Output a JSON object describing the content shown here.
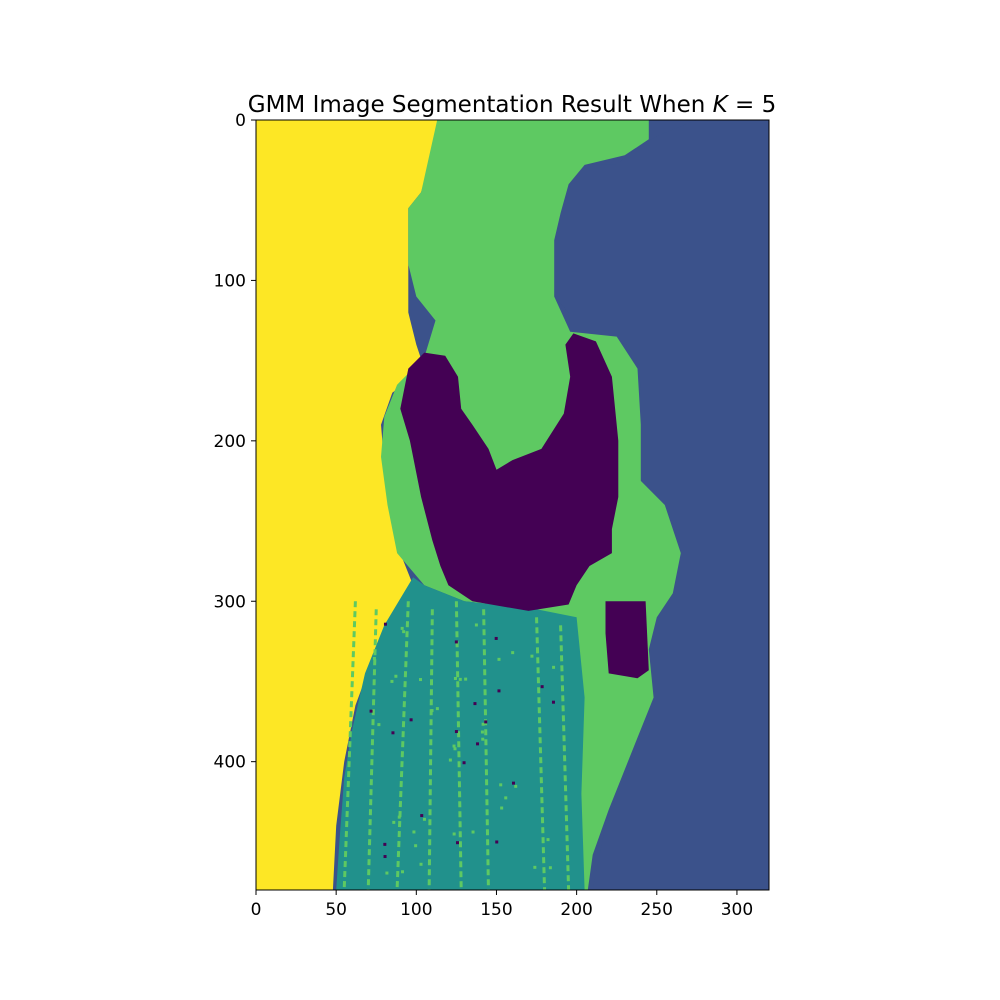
{
  "chart_data": {
    "type": "heatmap",
    "title": "GMM Image Segmentation Result When",
    "title_math": "K = 5",
    "xlabel": "",
    "ylabel": "",
    "image_width": 320,
    "image_height": 480,
    "xlim": [
      0,
      320
    ],
    "ylim": [
      480,
      0
    ],
    "x_ticks": [
      0,
      50,
      100,
      150,
      200,
      250,
      300
    ],
    "y_ticks": [
      0,
      100,
      200,
      300,
      400
    ],
    "grid": false,
    "colormap": "viridis",
    "num_clusters": 5,
    "cluster_colors": [
      "#440154",
      "#3b528b",
      "#21918c",
      "#5ec962",
      "#fde725"
    ],
    "regions": [
      {
        "cluster": 4,
        "name": "background-left",
        "points": [
          [
            0,
            0
          ],
          [
            113,
            0
          ],
          [
            113,
            12
          ],
          [
            103,
            45
          ],
          [
            95,
            55
          ],
          [
            95,
            120
          ],
          [
            100,
            140
          ],
          [
            105,
            155
          ],
          [
            85,
            170
          ],
          [
            78,
            190
          ],
          [
            80,
            215
          ],
          [
            85,
            245
          ],
          [
            90,
            270
          ],
          [
            98,
            290
          ],
          [
            90,
            305
          ],
          [
            75,
            330
          ],
          [
            62,
            365
          ],
          [
            55,
            400
          ],
          [
            50,
            440
          ],
          [
            48,
            480
          ],
          [
            0,
            480
          ]
        ]
      },
      {
        "cluster": 1,
        "name": "background-right",
        "points": [
          [
            275,
            0
          ],
          [
            320,
            0
          ],
          [
            320,
            480
          ],
          [
            210,
            480
          ],
          [
            215,
            455
          ],
          [
            220,
            430
          ],
          [
            230,
            405
          ],
          [
            240,
            380
          ],
          [
            245,
            350
          ],
          [
            245,
            320
          ],
          [
            250,
            295
          ],
          [
            255,
            260
          ],
          [
            240,
            230
          ],
          [
            238,
            200
          ],
          [
            240,
            165
          ],
          [
            232,
            140
          ],
          [
            196,
            132
          ],
          [
            195,
            120
          ],
          [
            186,
            110
          ],
          [
            185,
            70
          ],
          [
            190,
            58
          ],
          [
            195,
            40
          ],
          [
            200,
            28
          ],
          [
            225,
            28
          ],
          [
            240,
            15
          ],
          [
            255,
            8
          ]
        ]
      },
      {
        "cluster": 3,
        "name": "head-and-hair",
        "points": [
          [
            113,
            0
          ],
          [
            245,
            0
          ],
          [
            245,
            12
          ],
          [
            230,
            22
          ],
          [
            205,
            28
          ],
          [
            195,
            40
          ],
          [
            190,
            58
          ],
          [
            186,
            75
          ],
          [
            186,
            110
          ],
          [
            196,
            132
          ],
          [
            225,
            135
          ],
          [
            238,
            155
          ],
          [
            240,
            190
          ],
          [
            240,
            225
          ],
          [
            255,
            240
          ],
          [
            265,
            270
          ],
          [
            260,
            295
          ],
          [
            250,
            310
          ],
          [
            245,
            330
          ],
          [
            248,
            360
          ],
          [
            238,
            385
          ],
          [
            228,
            410
          ],
          [
            220,
            430
          ],
          [
            210,
            458
          ],
          [
            207,
            480
          ],
          [
            180,
            480
          ],
          [
            185,
            420
          ],
          [
            195,
            330
          ],
          [
            175,
            305
          ],
          [
            130,
            300
          ],
          [
            105,
            290
          ],
          [
            88,
            270
          ],
          [
            82,
            240
          ],
          [
            78,
            210
          ],
          [
            80,
            185
          ],
          [
            88,
            165
          ],
          [
            105,
            148
          ],
          [
            112,
            125
          ],
          [
            100,
            110
          ],
          [
            95,
            90
          ],
          [
            95,
            55
          ],
          [
            103,
            45
          ]
        ]
      },
      {
        "cluster": 2,
        "name": "skirt",
        "points": [
          [
            98,
            285
          ],
          [
            105,
            290
          ],
          [
            130,
            300
          ],
          [
            175,
            305
          ],
          [
            200,
            310
          ],
          [
            205,
            360
          ],
          [
            203,
            420
          ],
          [
            205,
            480
          ],
          [
            50,
            480
          ],
          [
            52,
            450
          ],
          [
            55,
            410
          ],
          [
            60,
            380
          ],
          [
            68,
            345
          ],
          [
            80,
            315
          ]
        ]
      },
      {
        "cluster": 0,
        "name": "sweater-body",
        "points": [
          [
            95,
            155
          ],
          [
            105,
            145
          ],
          [
            118,
            147
          ],
          [
            126,
            160
          ],
          [
            128,
            180
          ],
          [
            135,
            190
          ],
          [
            145,
            205
          ],
          [
            150,
            218
          ],
          [
            160,
            212
          ],
          [
            178,
            205
          ],
          [
            192,
            183
          ],
          [
            196,
            160
          ],
          [
            193,
            140
          ],
          [
            198,
            133
          ],
          [
            212,
            138
          ],
          [
            222,
            160
          ],
          [
            226,
            200
          ],
          [
            226,
            235
          ],
          [
            222,
            255
          ],
          [
            222,
            270
          ],
          [
            208,
            278
          ],
          [
            200,
            290
          ],
          [
            195,
            302
          ],
          [
            170,
            306
          ],
          [
            135,
            300
          ],
          [
            120,
            290
          ],
          [
            115,
            278
          ],
          [
            110,
            262
          ],
          [
            103,
            235
          ],
          [
            96,
            200
          ],
          [
            90,
            180
          ]
        ]
      },
      {
        "cluster": 0,
        "name": "sweater-sleeve",
        "points": [
          [
            218,
            300
          ],
          [
            243,
            300
          ],
          [
            245,
            343
          ],
          [
            238,
            348
          ],
          [
            220,
            345
          ],
          [
            218,
            320
          ]
        ]
      }
    ]
  }
}
